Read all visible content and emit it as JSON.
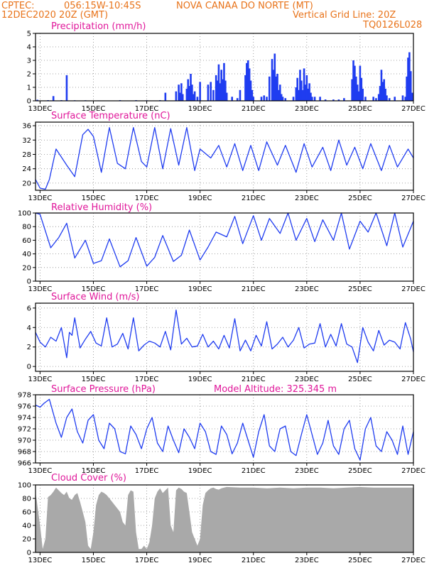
{
  "header": {
    "org": "CPTEC:",
    "coords": "056:15W-10:45S",
    "location": "NOVA CANAA DO NORTE (MT)",
    "datetime": "12DEC2020 20Z (GMT)",
    "grid_note": "Vertical Grid Line: 20Z",
    "code": "TQ0126L028"
  },
  "colors": {
    "header": "#e8731a",
    "title": "#e0179a",
    "line": "#1f3cf0",
    "cloud": "#a9a9a9"
  },
  "x_axis": {
    "start_day": 12.83,
    "end_day": 27.0,
    "tick_days": [
      13,
      15,
      17,
      19,
      21,
      23,
      25,
      27
    ],
    "tick_labels": [
      "13DEC",
      "15DEC",
      "17DEC",
      "19DEC",
      "21DEC",
      "23DEC",
      "25DEC",
      "27DEC"
    ]
  },
  "chart_data": [
    {
      "type": "bar",
      "title": "Precipitation (mm/h)",
      "ylim": [
        0,
        5
      ],
      "yticks": [
        0,
        1,
        2,
        3,
        4,
        5
      ],
      "series": [
        {
          "x": [
            12.9,
            13.3,
            13.4,
            13.5,
            13.8,
            14.0,
            14.3,
            14.7,
            15.2,
            16.0,
            16.6,
            17.0,
            17.5,
            17.7,
            18.1,
            18.2,
            18.25,
            18.3,
            18.35,
            18.5,
            18.55,
            18.6,
            18.65,
            18.7,
            18.75,
            18.8,
            18.9,
            19.0,
            19.3,
            19.4,
            19.5,
            19.6,
            19.65,
            19.7,
            19.75,
            19.8,
            19.85,
            19.9,
            19.95,
            20.0,
            20.2,
            20.4,
            20.5,
            20.7,
            20.75,
            20.8,
            20.85,
            20.9,
            20.95,
            21.0,
            21.3,
            21.4,
            21.5,
            21.6,
            21.7,
            21.75,
            21.8,
            21.85,
            21.9,
            21.95,
            22.0,
            22.05,
            22.1,
            22.2,
            22.5,
            22.6,
            22.65,
            22.7,
            22.75,
            22.8,
            22.85,
            22.9,
            22.95,
            23.0,
            23.05,
            23.1,
            23.15,
            23.2,
            23.3,
            23.5,
            23.7,
            24.0,
            24.2,
            24.4,
            24.7,
            24.75,
            24.8,
            24.85,
            24.9,
            24.95,
            25.0,
            25.05,
            25.1,
            25.2,
            25.5,
            25.6,
            25.7,
            25.75,
            25.8,
            25.85,
            25.9,
            25.95,
            26.0,
            26.1,
            26.3,
            26.6,
            26.7,
            26.75,
            26.8,
            26.85,
            26.9,
            26.95
          ],
          "values": [
            0.08,
            0.05,
            0.03,
            0.35,
            0.05,
            1.9,
            0.04,
            0.04,
            0.03,
            0.05,
            0.05,
            0.04,
            0.05,
            0.6,
            0.7,
            1.2,
            0.6,
            1.3,
            0.5,
            0.9,
            1.6,
            1.1,
            2.0,
            1.2,
            0.5,
            0.7,
            0.3,
            1.4,
            1.2,
            1.4,
            0.8,
            1.9,
            1.5,
            2.7,
            1.3,
            2.3,
            1.6,
            2.8,
            1.5,
            0.6,
            0.3,
            0.2,
            0.8,
            1.9,
            2.8,
            3.0,
            2.4,
            1.5,
            0.8,
            0.3,
            0.3,
            0.4,
            0.3,
            1.8,
            3.1,
            2.3,
            3.5,
            1.8,
            2.0,
            0.8,
            1.2,
            0.5,
            0.3,
            0.2,
            0.3,
            1.0,
            1.7,
            0.8,
            2.3,
            1.5,
            0.8,
            2.4,
            1.2,
            1.9,
            0.9,
            1.3,
            0.6,
            0.3,
            0.3,
            0.3,
            0.1,
            0.1,
            0.1,
            0.2,
            1.6,
            3.0,
            2.6,
            1.8,
            1.2,
            0.7,
            2.6,
            1.7,
            0.9,
            0.3,
            0.3,
            0.2,
            0.5,
            1.1,
            2.3,
            1.4,
            1.6,
            0.9,
            0.4,
            0.2,
            0.3,
            0.4,
            0.3,
            1.8,
            3.2,
            3.6,
            2.2,
            0.6
          ]
        }
      ]
    },
    {
      "type": "line",
      "title": "Surface Temperature (nC)",
      "ylim": [
        18,
        37
      ],
      "yticks": [
        20,
        24,
        28,
        32,
        36
      ],
      "series": [
        {
          "x": [
            12.83,
            13.0,
            13.2,
            13.35,
            13.6,
            14.0,
            14.3,
            14.6,
            14.8,
            15.0,
            15.3,
            15.6,
            15.9,
            16.2,
            16.5,
            16.8,
            17.0,
            17.3,
            17.6,
            17.9,
            18.2,
            18.5,
            18.8,
            19.0,
            19.4,
            19.7,
            20.0,
            20.3,
            20.6,
            20.9,
            21.2,
            21.5,
            21.9,
            22.2,
            22.6,
            22.9,
            23.2,
            23.6,
            23.9,
            24.2,
            24.5,
            24.8,
            25.1,
            25.4,
            25.8,
            26.1,
            26.4,
            26.8,
            27.0
          ],
          "values": [
            21.0,
            18.6,
            18.3,
            21.0,
            29.5,
            25.0,
            21.8,
            33.5,
            35.0,
            33.0,
            23.0,
            35.5,
            25.5,
            24.0,
            35.5,
            26.0,
            24.5,
            35.5,
            24.0,
            35.2,
            25.0,
            35.5,
            23.5,
            29.5,
            27.0,
            30.5,
            24.5,
            31.0,
            23.5,
            30.5,
            23.5,
            31.5,
            25.0,
            30.5,
            23.0,
            31.0,
            24.5,
            30.0,
            23.5,
            32.0,
            25.0,
            30.0,
            24.0,
            31.0,
            23.5,
            30.5,
            24.5,
            29.5,
            27.0
          ]
        }
      ]
    },
    {
      "type": "line",
      "title": "Relative Humidity (%)",
      "ylim": [
        0,
        100
      ],
      "yticks": [
        0,
        20,
        40,
        60,
        80,
        100
      ],
      "series": [
        {
          "x": [
            12.83,
            13.0,
            13.4,
            13.7,
            14.0,
            14.3,
            14.7,
            15.0,
            15.3,
            15.6,
            16.0,
            16.3,
            16.6,
            17.0,
            17.3,
            17.6,
            18.0,
            18.3,
            18.6,
            19.0,
            19.3,
            19.6,
            20.0,
            20.3,
            20.6,
            21.0,
            21.3,
            21.6,
            22.0,
            22.3,
            22.6,
            23.0,
            23.3,
            23.6,
            24.0,
            24.3,
            24.6,
            25.0,
            25.3,
            25.6,
            26.0,
            26.3,
            26.6,
            27.0
          ],
          "values": [
            100,
            98,
            49,
            64,
            85,
            34,
            60,
            26,
            30,
            62,
            21,
            30,
            64,
            22,
            35,
            67,
            29,
            38,
            75,
            31,
            50,
            72,
            65,
            95,
            55,
            96,
            60,
            92,
            70,
            100,
            60,
            92,
            58,
            90,
            60,
            100,
            47,
            88,
            72,
            100,
            52,
            100,
            50,
            88
          ]
        }
      ]
    },
    {
      "type": "line",
      "title": "Surface Wind (m/s)",
      "ylim": [
        -0.5,
        6.5
      ],
      "yticks": [
        0,
        2,
        4,
        6
      ],
      "series": [
        {
          "x": [
            12.83,
            13.0,
            13.2,
            13.4,
            13.6,
            13.8,
            14.0,
            14.1,
            14.2,
            14.3,
            14.5,
            14.7,
            14.9,
            15.1,
            15.3,
            15.5,
            15.7,
            15.9,
            16.1,
            16.3,
            16.5,
            16.7,
            16.9,
            17.1,
            17.3,
            17.5,
            17.7,
            17.9,
            18.1,
            18.3,
            18.5,
            18.7,
            18.9,
            19.1,
            19.3,
            19.5,
            19.7,
            19.9,
            20.1,
            20.3,
            20.5,
            20.7,
            20.9,
            21.1,
            21.3,
            21.5,
            21.7,
            21.9,
            22.1,
            22.3,
            22.5,
            22.7,
            22.9,
            23.1,
            23.3,
            23.5,
            23.7,
            23.9,
            24.1,
            24.3,
            24.5,
            24.7,
            24.9,
            25.1,
            25.3,
            25.5,
            25.7,
            25.9,
            26.1,
            26.3,
            26.5,
            26.7,
            26.9,
            27.0
          ],
          "values": [
            3.5,
            2.5,
            2.0,
            3.0,
            2.6,
            4.0,
            0.9,
            3.5,
            3.2,
            5.0,
            1.9,
            2.8,
            3.6,
            2.4,
            2.1,
            5.0,
            2.0,
            2.3,
            3.4,
            1.8,
            5.0,
            1.6,
            2.2,
            2.6,
            2.4,
            2.0,
            3.6,
            1.7,
            5.8,
            2.3,
            2.9,
            2.0,
            2.1,
            3.3,
            2.0,
            2.6,
            1.8,
            3.2,
            1.9,
            4.9,
            1.6,
            2.7,
            1.6,
            3.2,
            2.1,
            4.6,
            1.8,
            2.3,
            3.0,
            2.0,
            2.7,
            4.0,
            1.9,
            2.3,
            2.4,
            4.4,
            2.0,
            3.3,
            2.1,
            4.4,
            2.3,
            2.0,
            0.4,
            4.0,
            2.5,
            1.6,
            3.7,
            2.2,
            2.7,
            2.5,
            1.8,
            4.5,
            2.8,
            1.5
          ]
        }
      ]
    },
    {
      "type": "line",
      "title": "Surface Pressure (hPa)",
      "subtitle": "Model Altitude: 325.345 m",
      "ylim": [
        966,
        978
      ],
      "yticks": [
        966,
        968,
        970,
        972,
        974,
        976,
        978
      ],
      "series": [
        {
          "x": [
            12.83,
            13.0,
            13.15,
            13.35,
            13.6,
            13.8,
            14.0,
            14.2,
            14.4,
            14.6,
            14.8,
            15.0,
            15.2,
            15.4,
            15.6,
            15.8,
            16.0,
            16.2,
            16.4,
            16.6,
            16.8,
            17.0,
            17.2,
            17.4,
            17.6,
            17.8,
            18.0,
            18.2,
            18.4,
            18.6,
            18.8,
            19.0,
            19.2,
            19.4,
            19.6,
            19.8,
            20.0,
            20.2,
            20.4,
            20.6,
            20.8,
            21.0,
            21.2,
            21.4,
            21.6,
            21.8,
            22.0,
            22.2,
            22.4,
            22.6,
            22.8,
            23.0,
            23.2,
            23.4,
            23.6,
            23.8,
            24.0,
            24.2,
            24.4,
            24.6,
            24.8,
            25.0,
            25.2,
            25.4,
            25.6,
            25.8,
            26.0,
            26.2,
            26.4,
            26.6,
            26.8,
            27.0
          ],
          "values": [
            976.2,
            975.8,
            976.5,
            977.2,
            973.0,
            970.5,
            974.0,
            975.5,
            971.5,
            969.5,
            973.5,
            974.5,
            970.0,
            968.5,
            973.0,
            972.0,
            968.0,
            967.6,
            972.5,
            971.0,
            968.5,
            972.0,
            974.0,
            969.5,
            968.0,
            972.5,
            970.0,
            967.8,
            972.0,
            970.5,
            968.5,
            973.0,
            971.5,
            968.0,
            967.5,
            972.5,
            971.0,
            967.6,
            969.5,
            973.0,
            970.0,
            967.0,
            971.5,
            974.5,
            969.0,
            968.0,
            972.0,
            972.5,
            968.0,
            967.3,
            971.0,
            974.5,
            971.0,
            967.5,
            969.5,
            973.5,
            969.0,
            967.5,
            972.0,
            973.5,
            968.5,
            966.5,
            972.0,
            974.0,
            969.0,
            968.0,
            971.5,
            970.0,
            967.5,
            972.5,
            967.5,
            971.5
          ]
        }
      ]
    },
    {
      "type": "area",
      "title": "Cloud Cover (%)",
      "ylim": [
        0,
        100
      ],
      "yticks": [
        0,
        20,
        40,
        60,
        80,
        100
      ],
      "series": [
        {
          "x": [
            12.83,
            12.9,
            13.0,
            13.1,
            13.2,
            13.3,
            13.4,
            13.5,
            13.6,
            13.7,
            13.8,
            13.9,
            14.0,
            14.1,
            14.2,
            14.3,
            14.4,
            14.5,
            14.6,
            14.7,
            14.8,
            14.9,
            15.0,
            15.1,
            15.2,
            15.3,
            15.4,
            15.5,
            15.6,
            15.7,
            15.8,
            15.9,
            16.0,
            16.1,
            16.2,
            16.3,
            16.4,
            16.5,
            16.6,
            16.7,
            16.8,
            16.9,
            17.0,
            17.1,
            17.2,
            17.3,
            17.4,
            17.5,
            17.6,
            17.7,
            17.8,
            17.9,
            18.0,
            18.1,
            18.2,
            18.3,
            18.4,
            18.5,
            18.6,
            18.7,
            18.8,
            18.9,
            19.0,
            19.1,
            19.2,
            19.3,
            19.4,
            19.5,
            19.6,
            19.7,
            19.8,
            19.9,
            20.0,
            20.5,
            21.0,
            21.5,
            22.0,
            22.5,
            23.0,
            23.5,
            24.0,
            24.5,
            25.0,
            25.5,
            26.0,
            26.5,
            27.0
          ],
          "values": [
            90,
            70,
            40,
            5,
            20,
            82,
            85,
            90,
            96,
            92,
            88,
            85,
            90,
            80,
            78,
            85,
            88,
            75,
            60,
            45,
            10,
            5,
            30,
            70,
            85,
            90,
            88,
            85,
            80,
            75,
            70,
            65,
            60,
            45,
            40,
            85,
            92,
            90,
            30,
            5,
            5,
            10,
            5,
            15,
            40,
            80,
            90,
            95,
            88,
            92,
            96,
            40,
            30,
            92,
            96,
            94,
            90,
            88,
            60,
            30,
            20,
            10,
            20,
            70,
            88,
            92,
            95,
            96,
            94,
            93,
            95,
            96,
            97,
            96,
            96,
            95,
            96,
            95,
            96,
            96,
            95,
            96,
            97,
            96,
            96,
            96,
            96
          ]
        }
      ]
    }
  ]
}
